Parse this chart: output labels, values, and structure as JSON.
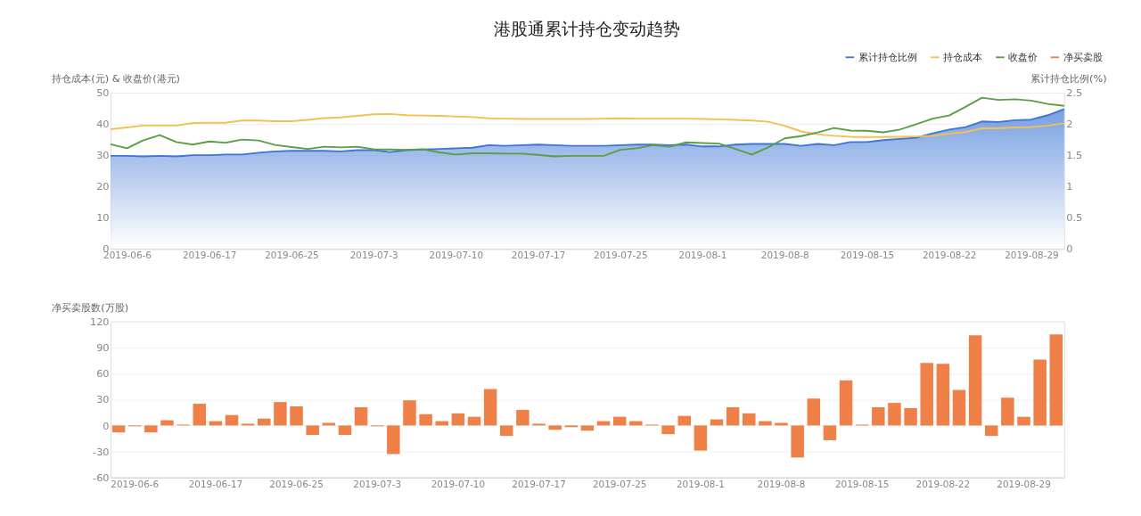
{
  "chart_data": [
    {
      "type": "line",
      "title": "港股通累计持仓变动趋势",
      "ylabel": "持仓成本(元) & 收盘价(港元)",
      "y2label": "累计持仓比例(%)",
      "categories": [
        null,
        "2019-06-6",
        null,
        null,
        null,
        null,
        "2019-06-17",
        null,
        null,
        null,
        null,
        "2019-06-25",
        null,
        null,
        null,
        null,
        "2019-07-3",
        null,
        null,
        null,
        null,
        "2019-07-10",
        null,
        null,
        null,
        null,
        "2019-07-17",
        null,
        null,
        null,
        null,
        "2019-07-25",
        null,
        null,
        null,
        null,
        "2019-08-1",
        null,
        null,
        null,
        null,
        "2019-08-8",
        null,
        null,
        null,
        null,
        "2019-08-15",
        null,
        null,
        null,
        null,
        "2019-08-22",
        null,
        null,
        null,
        null,
        "2019-08-29",
        null,
        null
      ],
      "ylim": [
        0,
        50
      ],
      "yticks": [
        0,
        10,
        20,
        30,
        40,
        50
      ],
      "y2lim": [
        0,
        2.5
      ],
      "y2ticks": [
        0,
        0.5,
        1,
        1.5,
        2,
        2.5
      ],
      "grid": "y",
      "legend": "top right",
      "series": [
        {
          "name": "累计持仓比例",
          "type": "area",
          "axis": "y2",
          "color": "#3d76d6",
          "values": [
            1.49,
            1.49,
            1.48,
            1.49,
            1.48,
            1.5,
            1.5,
            1.51,
            1.51,
            1.54,
            1.56,
            1.57,
            1.57,
            1.57,
            1.56,
            1.58,
            1.58,
            1.55,
            1.58,
            1.59,
            1.6,
            1.61,
            1.62,
            1.66,
            1.65,
            1.66,
            1.67,
            1.66,
            1.65,
            1.65,
            1.65,
            1.66,
            1.67,
            1.67,
            1.66,
            1.67,
            1.64,
            1.64,
            1.67,
            1.68,
            1.68,
            1.68,
            1.65,
            1.68,
            1.66,
            1.71,
            1.71,
            1.74,
            1.76,
            1.78,
            1.85,
            1.91,
            1.95,
            2.04,
            2.03,
            2.06,
            2.07,
            2.14,
            2.24
          ]
        },
        {
          "name": "持仓成本",
          "color": "#f2c14e",
          "values": [
            38.3,
            38.9,
            39.5,
            39.5,
            39.5,
            40.3,
            40.4,
            40.4,
            41.1,
            41.1,
            40.9,
            40.9,
            41.3,
            41.9,
            42.1,
            42.6,
            43.1,
            43.2,
            42.8,
            42.7,
            42.6,
            42.4,
            42.2,
            41.8,
            41.7,
            41.6,
            41.6,
            41.6,
            41.6,
            41.6,
            41.7,
            41.8,
            41.7,
            41.7,
            41.7,
            41.7,
            41.6,
            41.5,
            41.3,
            41.1,
            40.7,
            39.4,
            37.6,
            36.7,
            36.2,
            35.9,
            35.8,
            35.8,
            35.9,
            36.0,
            36.2,
            36.9,
            37.4,
            38.6,
            38.6,
            38.9,
            39.0,
            39.5,
            40.2
          ]
        },
        {
          "name": "收盘价",
          "color": "#5a9e45",
          "values": [
            33.5,
            32.2,
            34.8,
            36.4,
            34.2,
            33.4,
            34.4,
            34.0,
            35.0,
            34.7,
            33.3,
            32.6,
            32.0,
            32.7,
            32.5,
            32.7,
            31.9,
            31.8,
            31.7,
            31.9,
            30.9,
            30.2,
            30.6,
            30.6,
            30.5,
            30.5,
            30.1,
            29.6,
            29.8,
            29.8,
            29.8,
            31.7,
            32.2,
            33.2,
            32.7,
            34.1,
            33.9,
            33.7,
            32.0,
            30.2,
            32.5,
            35.4,
            36.1,
            37.3,
            38.7,
            37.9,
            37.8,
            37.3,
            38.2,
            39.9,
            41.7,
            42.7,
            45.5,
            48.4,
            47.7,
            47.9,
            47.5,
            46.4,
            45.8
          ]
        }
      ]
    },
    {
      "type": "bar",
      "ylabel": "净买卖股数(万股)",
      "categories": [
        null,
        "2019-06-6",
        null,
        null,
        null,
        null,
        "2019-06-17",
        null,
        null,
        null,
        null,
        "2019-06-25",
        null,
        null,
        null,
        null,
        "2019-07-3",
        null,
        null,
        null,
        null,
        "2019-07-10",
        null,
        null,
        null,
        null,
        "2019-07-17",
        null,
        null,
        null,
        null,
        "2019-07-25",
        null,
        null,
        null,
        null,
        "2019-08-1",
        null,
        null,
        null,
        null,
        "2019-08-8",
        null,
        null,
        null,
        null,
        "2019-08-15",
        null,
        null,
        null,
        null,
        "2019-08-22",
        null,
        null,
        null,
        null,
        "2019-08-29",
        null,
        null
      ],
      "ylim": [
        -60,
        120
      ],
      "yticks": [
        -60,
        -30,
        0,
        30,
        60,
        90,
        120
      ],
      "grid": "y",
      "legend": "top right",
      "series": [
        {
          "name": "净买卖股",
          "color": "#ee8048",
          "values": [
            -8,
            -1,
            -8,
            6,
            1,
            25,
            5,
            12,
            2,
            8,
            27,
            22,
            -11,
            3,
            -11,
            21,
            -1,
            -33,
            29,
            13,
            5,
            14,
            10,
            42,
            -12,
            18,
            2,
            -5,
            -2,
            -6,
            5,
            10,
            5,
            1,
            -10,
            11,
            -29,
            7,
            21,
            14,
            5,
            3,
            -37,
            31,
            -17,
            52,
            1,
            21,
            26,
            20,
            72,
            71,
            41,
            104,
            -12,
            32,
            10,
            76,
            105
          ]
        }
      ]
    }
  ]
}
